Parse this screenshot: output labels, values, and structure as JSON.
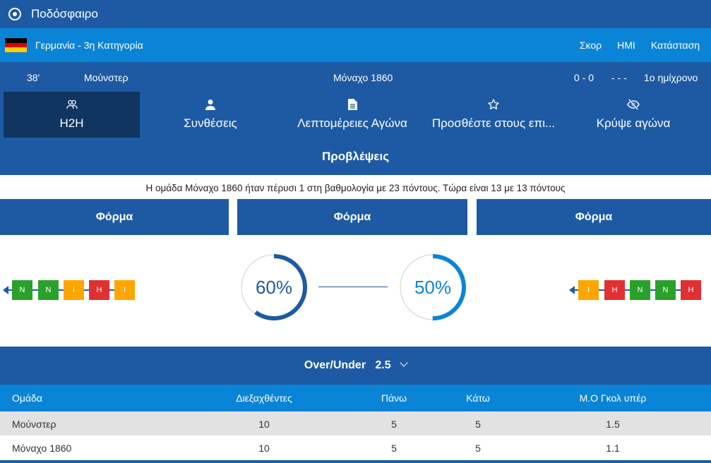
{
  "app": {
    "title": "Ποδόσφαιρο",
    "icon": "soccer-ball-icon"
  },
  "league": {
    "name": "Γερμανία - 3η Κατηγορία",
    "flag_colors": [
      "#000000",
      "#dd0000",
      "#ffce00"
    ],
    "headers": [
      "Σκορ",
      "ΗΜΙ",
      "Κατάσταση"
    ]
  },
  "match": {
    "minute": "38'",
    "home": "Μούνστερ",
    "away": "Μόναχο 1860",
    "score": "0 - 0",
    "halftime": "- - -",
    "status": "1ο ημίχρονο"
  },
  "tabs": [
    {
      "label": "H2H",
      "icon": "users-icon",
      "active": true
    },
    {
      "label": "Συνθέσεις",
      "icon": "person-icon"
    },
    {
      "label": "Λεπτομέρειες Αγώνα",
      "icon": "document-icon"
    },
    {
      "label": "Προσθέστε στους επι...",
      "icon": "star-icon"
    },
    {
      "label": "Κρύψε αγώνα",
      "icon": "eye-slash-icon"
    }
  ],
  "predictions": {
    "title": "Προβλέψεις",
    "info": "Η ομάδα Μόναχο 1860 ήταν πέρυσι 1 στη βαθμολογία με 23 πόντους. Τώρα είναι 13 με 13 πόντους"
  },
  "form": {
    "headers": [
      "Φόρμα",
      "Φόρμα",
      "Φόρμα"
    ],
    "home": [
      "Ν",
      "Ν",
      "Ι",
      "Η",
      "Ι"
    ],
    "away": [
      "Ι",
      "Η",
      "Ν",
      "Ν",
      "Η"
    ],
    "colors": {
      "Ν": "#2aa12a",
      "Ι": "#ffa500",
      "Η": "#e03030"
    }
  },
  "gauges": [
    {
      "label": "60%",
      "value": 0.6,
      "color": "#1e5aa3"
    },
    {
      "label": "50%",
      "value": 0.5,
      "color": "#0a84d6"
    }
  ],
  "over_under": {
    "label": "Over/Under",
    "value": "2.5"
  },
  "table": {
    "headers": [
      "Ομάδα",
      "Διεξαχθέντες",
      "Πάνω",
      "Κάτω",
      "Μ.Ο Γκολ υπέρ"
    ],
    "rows": [
      [
        "Μούνστερ",
        "10",
        "5",
        "5",
        "1.5"
      ],
      [
        "Μόναχο 1860",
        "10",
        "5",
        "5",
        "1.1"
      ]
    ]
  }
}
